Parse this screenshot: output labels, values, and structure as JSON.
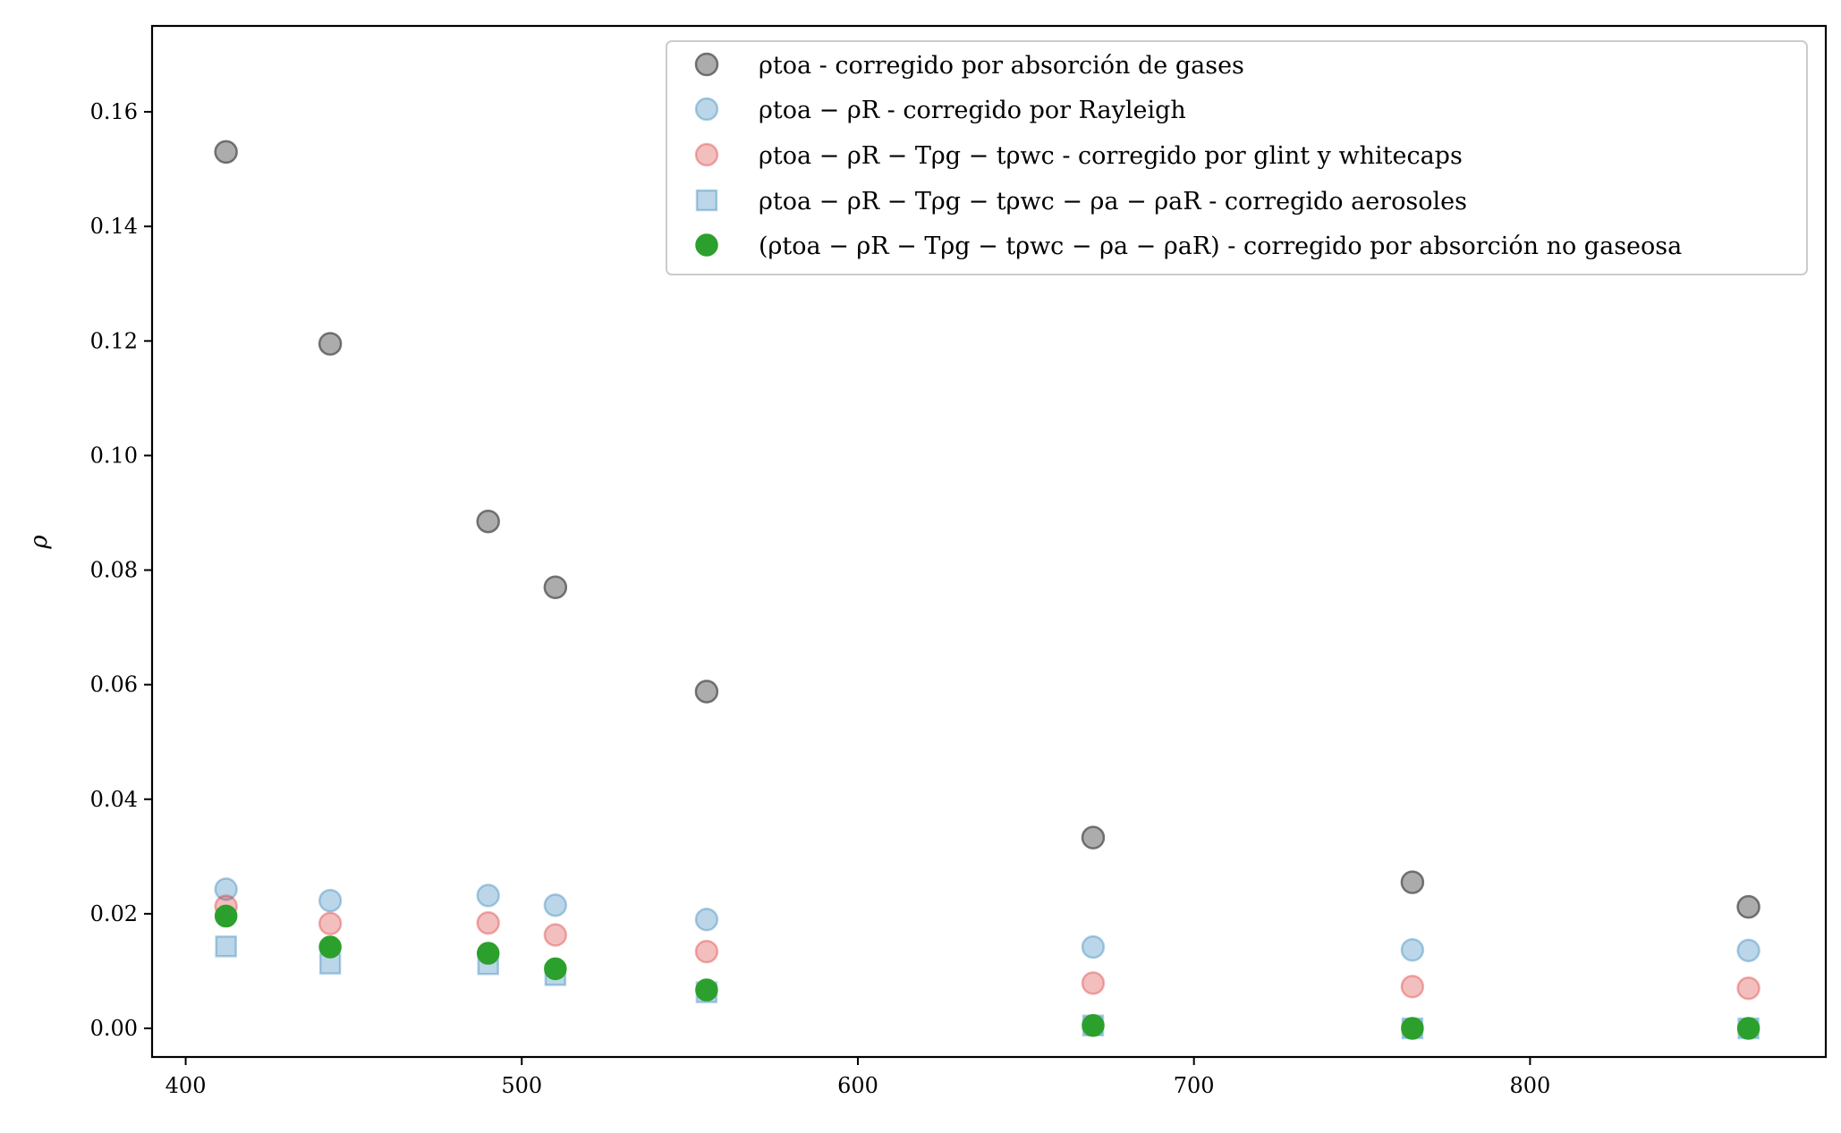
{
  "chart_data": {
    "type": "scatter",
    "title": "",
    "xlabel": "",
    "ylabel": "ρ",
    "xlim": [
      390,
      888
    ],
    "ylim": [
      -0.005,
      0.175
    ],
    "xticks": [
      400,
      500,
      600,
      700,
      800
    ],
    "yticks": [
      0.0,
      0.02,
      0.04,
      0.06,
      0.08,
      0.1,
      0.12,
      0.14,
      0.16
    ],
    "ytick_labels": [
      "0.00",
      "0.02",
      "0.04",
      "0.06",
      "0.08",
      "0.10",
      "0.12",
      "0.14",
      "0.16"
    ],
    "xtick_labels": [
      "400",
      "500",
      "600",
      "700",
      "800"
    ],
    "grid": false,
    "legend_position": "top-right",
    "x": [
      412,
      443,
      490,
      510,
      555,
      670,
      765,
      865
    ],
    "series": [
      {
        "name": "ρtoa - corregido por absorción de gases",
        "marker": "circle",
        "color": "#7f7f7f",
        "values": [
          0.153,
          0.1195,
          0.0885,
          0.077,
          0.0588,
          0.0333,
          0.0255,
          0.0212
        ]
      },
      {
        "name": "ρtoa − ρR - corregido por Rayleigh",
        "marker": "circle",
        "color": "#1f77b4",
        "values": [
          0.0243,
          0.0223,
          0.0232,
          0.0215,
          0.019,
          0.0142,
          0.0137,
          0.0136
        ]
      },
      {
        "name": "ρtoa − ρR − Tρg − tρwc - corregido por glint y whitecaps",
        "marker": "circle",
        "color": "#d62728",
        "values": [
          0.0213,
          0.0183,
          0.0184,
          0.0163,
          0.0134,
          0.0079,
          0.0073,
          0.007
        ]
      },
      {
        "name": "ρtoa − ρR − Tρg − tρwc − ρa − ρaR - corregido aerosoles",
        "marker": "square",
        "color": "#1f77b4",
        "values": [
          0.0143,
          0.0113,
          0.0112,
          0.0093,
          0.0063,
          0.0005,
          0.0,
          0.0
        ]
      },
      {
        "name": "(ρtoa − ρR − Tρg − tρwc − ρa − ρaR) - corregido por absorción no gaseosa",
        "marker": "circle-solid",
        "color": "#2ca02c",
        "values": [
          0.0196,
          0.0142,
          0.0131,
          0.0104,
          0.0067,
          0.0005,
          0.0,
          0.0
        ]
      }
    ]
  }
}
